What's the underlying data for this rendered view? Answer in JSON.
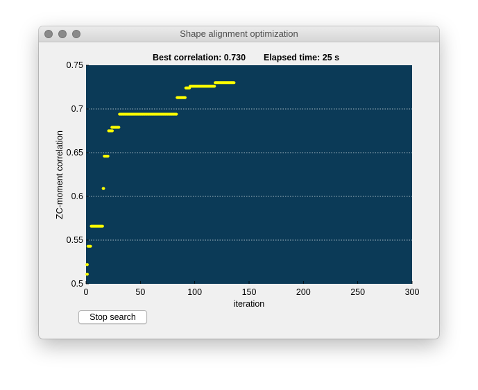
{
  "window": {
    "title": "Shape alignment optimization"
  },
  "header": {
    "best_correlation_label": "Best correlation: 0.730",
    "elapsed_label": "Elapsed time:  25 s"
  },
  "buttons": {
    "stop_label": "Stop search"
  },
  "colors": {
    "plot_background": "#0b3a57",
    "marker": "#ffff00",
    "grid": "#ffffff"
  },
  "chart_data": {
    "type": "scatter",
    "xlabel": "iteration",
    "ylabel": "ZC-moment correlation",
    "xlim": [
      0,
      300
    ],
    "ylim": [
      0.5,
      0.75
    ],
    "xticks": [
      0,
      50,
      100,
      150,
      200,
      250,
      300
    ],
    "xtick_labels": [
      "0",
      "50",
      "100",
      "150",
      "200",
      "250",
      "300"
    ],
    "yticks": [
      0.5,
      0.55,
      0.6,
      0.65,
      0.7,
      0.75
    ],
    "ytick_labels": [
      "0.5",
      "0.55",
      "0.6",
      "0.65",
      "0.7",
      "0.75"
    ],
    "y_grid": true,
    "x_grid": false,
    "segments": [
      {
        "x_start": 1,
        "x_end": 1,
        "y": 0.511
      },
      {
        "x_start": 1,
        "x_end": 1,
        "y": 0.522
      },
      {
        "x_start": 2,
        "x_end": 4,
        "y": 0.543
      },
      {
        "x_start": 5,
        "x_end": 15,
        "y": 0.566
      },
      {
        "x_start": 16,
        "x_end": 16,
        "y": 0.609
      },
      {
        "x_start": 17,
        "x_end": 20,
        "y": 0.646
      },
      {
        "x_start": 21,
        "x_end": 24,
        "y": 0.675
      },
      {
        "x_start": 24,
        "x_end": 30,
        "y": 0.679
      },
      {
        "x_start": 31,
        "x_end": 83,
        "y": 0.694
      },
      {
        "x_start": 84,
        "x_end": 91,
        "y": 0.713
      },
      {
        "x_start": 92,
        "x_end": 95,
        "y": 0.724
      },
      {
        "x_start": 96,
        "x_end": 118,
        "y": 0.726
      },
      {
        "x_start": 119,
        "x_end": 136,
        "y": 0.73
      }
    ]
  }
}
